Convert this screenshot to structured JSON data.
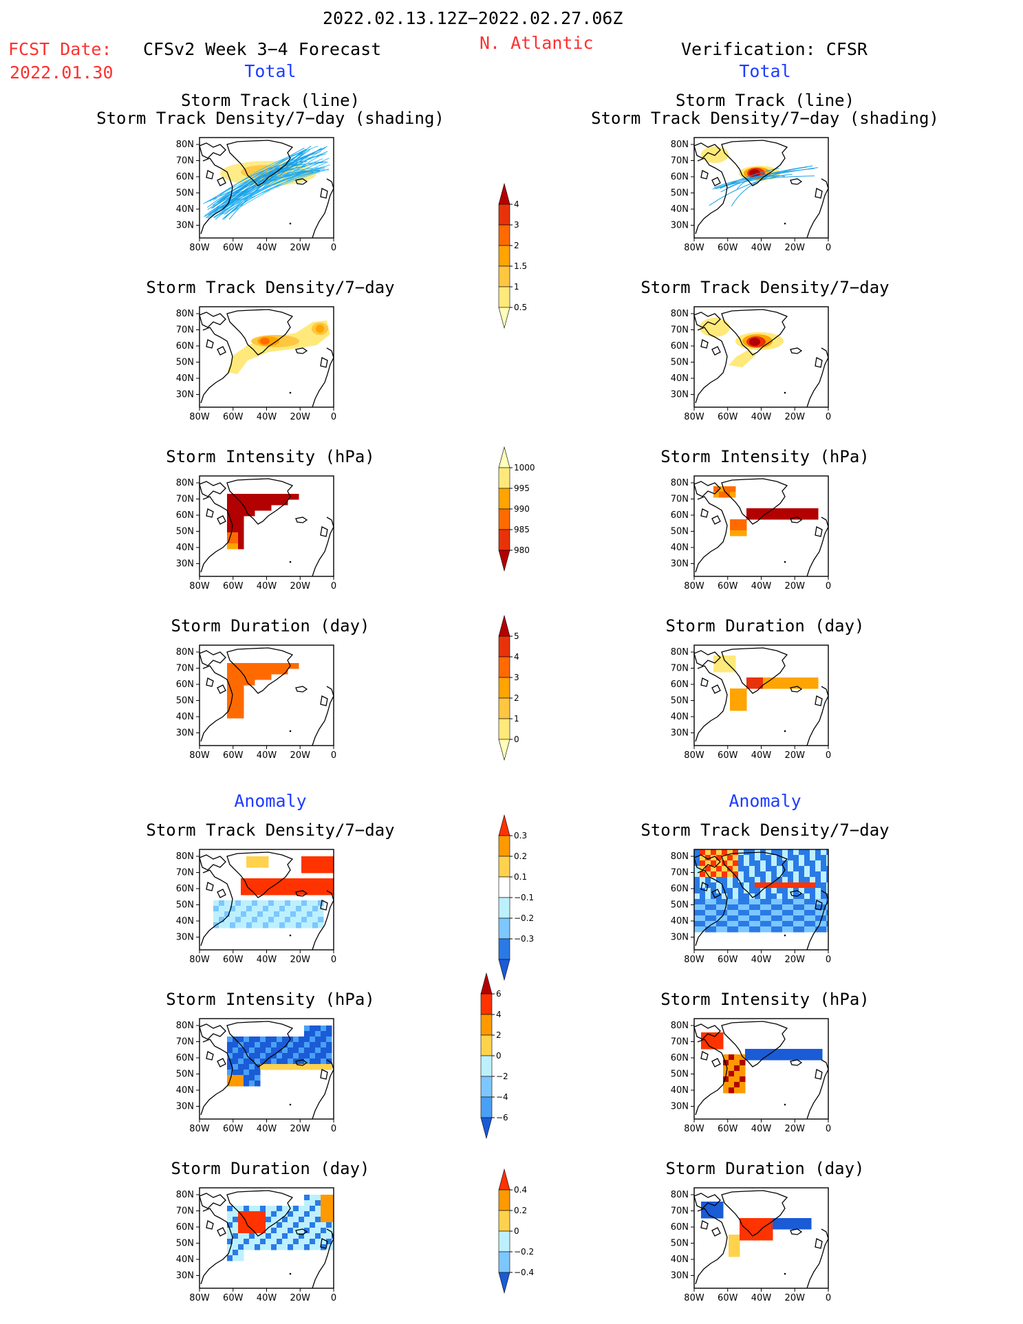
{
  "header": {
    "period": "2022.02.13.12Z−2022.02.27.06Z",
    "region": "N. Atlantic",
    "fcst_label": "FCST Date:",
    "fcst_date": "2022.01.30",
    "left_title": "CFSv2 Week 3−4 Forecast",
    "right_title": "Verification: CFSR"
  },
  "sections": {
    "total": "Total",
    "anomaly": "Anomaly"
  },
  "panel_titles": {
    "track_line": "Storm Track (line)",
    "track_shading": "Storm Track Density/7−day (shading)",
    "density": "Storm Track Density/7−day",
    "intensity": "Storm Intensity (hPa)",
    "duration": "Storm Duration (day)"
  },
  "axes": {
    "lat_labels": [
      "80N",
      "70N",
      "60N",
      "50N",
      "40N",
      "30N"
    ],
    "lon_labels": [
      "80W",
      "60W",
      "40W",
      "20W",
      "0"
    ]
  },
  "colorbars": {
    "density": {
      "labels": [
        "4",
        "3",
        "2",
        "1.5",
        "1",
        "0.5"
      ],
      "colors": [
        "#b30000",
        "#e8320a",
        "#ff6a00",
        "#ffa400",
        "#ffc640",
        "#ffe97a",
        "#ffffb8"
      ]
    },
    "intensity": {
      "labels": [
        "1000",
        "995",
        "990",
        "985",
        "980"
      ],
      "colors": [
        "#ffffb8",
        "#ffe97a",
        "#ffa400",
        "#ff6a00",
        "#e8320a",
        "#b30000"
      ]
    },
    "duration": {
      "labels": [
        "5",
        "4",
        "3",
        "2",
        "1",
        "0"
      ],
      "colors": [
        "#b30000",
        "#e8320a",
        "#ff6a00",
        "#ffa400",
        "#ffc640",
        "#ffe97a",
        "#ffffb8"
      ]
    },
    "density_anom": {
      "labels": [
        "0.3",
        "0.2",
        "0.1",
        "−0.1",
        "−0.2",
        "−0.3"
      ],
      "colors": [
        "#ff3300",
        "#ff9900",
        "#ffd24d",
        "#ffffff",
        "#bdf0ff",
        "#7cc7ff",
        "#2a7ae6",
        "#1a5bd6"
      ]
    },
    "intensity_anom": {
      "labels": [
        "6",
        "4",
        "2",
        "0",
        "−2",
        "−4",
        "−6"
      ],
      "colors": [
        "#b30000",
        "#ff3300",
        "#ff9900",
        "#ffd24d",
        "#bdf0ff",
        "#7cc7ff",
        "#4aa0f5",
        "#1a5bd6"
      ]
    },
    "duration_anom": {
      "labels": [
        "0.4",
        "0.2",
        "0",
        "−0.2",
        "−0.4"
      ],
      "colors": [
        "#ff3300",
        "#ff9900",
        "#ffd24d",
        "#bdf0ff",
        "#7cc7ff",
        "#1a5bd6"
      ]
    }
  }
}
